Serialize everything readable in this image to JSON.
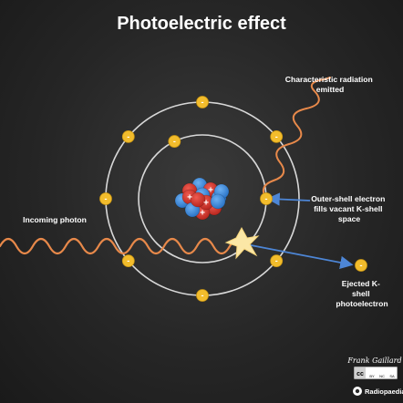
{
  "title": "Photoelectric effect",
  "labels": {
    "incoming_photon": "Incoming photon",
    "characteristic": [
      "Characteristic radiation",
      "emitted"
    ],
    "outer_shell": [
      "Outer-shell electron",
      "fills vacant K-shell",
      "space"
    ],
    "ejected": [
      "Ejected K-",
      "shell",
      "photoelectron"
    ]
  },
  "nucleus": {
    "proton_sign": "+",
    "proton_color": "#d9362b",
    "neutron_color": "#3f8fe0"
  },
  "electron": {
    "sign": "-",
    "color": "#f2bc2c"
  },
  "colors": {
    "photon_wave": "#e8894a",
    "arrow": "#4d86d6",
    "orbit": "#d8d8d8",
    "flash": "#fbe7a6"
  },
  "credit": {
    "author": "Frank Gaillard",
    "license": "cc",
    "license_terms": [
      "BY",
      "NC",
      "SA"
    ],
    "site": "Radiopaedia"
  }
}
